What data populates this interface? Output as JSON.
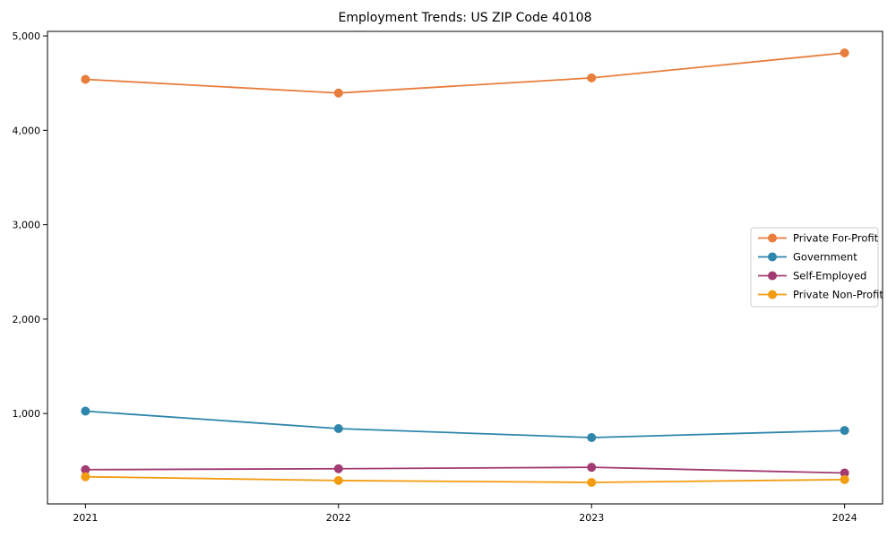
{
  "title": "Employment Trends: US ZIP Code 40108",
  "chart_data": {
    "type": "line",
    "title": "Employment Trends: US ZIP Code 40108",
    "xlabel": "",
    "ylabel": "",
    "x_categories": [
      "2021",
      "2022",
      "2023",
      "2024"
    ],
    "series": [
      {
        "name": "Private For-Profit",
        "color": "#E87D3C",
        "values": [
          4540,
          4395,
          4555,
          4820
        ]
      },
      {
        "name": "Government",
        "color": "#2E86AB",
        "values": [
          1025,
          840,
          745,
          820
        ]
      },
      {
        "name": "Self-Employed",
        "color": "#A23B72",
        "values": [
          405,
          415,
          430,
          370
        ]
      },
      {
        "name": "Private Non-Profit",
        "color": "#F39C12",
        "values": [
          330,
          290,
          270,
          300
        ]
      }
    ],
    "yticks": [
      1000,
      2000,
      3000,
      4000,
      5000
    ],
    "ytick_labels": [
      "1,000",
      "2,000",
      "3,000",
      "4,000",
      "5,000"
    ],
    "ylim": [
      42,
      5048
    ],
    "grid": false,
    "legend_position": "center-right",
    "marker": "circle",
    "axis_color": "#000000",
    "legend_border_color": "#cccccc",
    "legend_background": "#ffffff"
  }
}
